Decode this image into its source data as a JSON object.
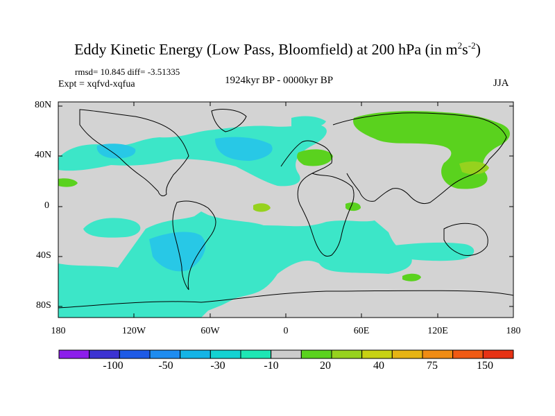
{
  "title": {
    "main": "Eddy Kinetic Energy (Low Pass, Bloomfield) at 200 hPa (in m",
    "sup1": "2",
    "s": "s",
    "sup2": "-2",
    "close": ")"
  },
  "stats": "rmsd= 10.845  diff= -3.51335",
  "expt": "Expt = xqfvd-xqfua",
  "period": "1924kyr BP - 0000kyr BP",
  "season": "JJA",
  "lat_labels": [
    "80N",
    "40N",
    "0",
    "40S",
    "80S"
  ],
  "lon_labels": [
    "180",
    "120W",
    "60W",
    "0",
    "60E",
    "120E",
    "180"
  ],
  "colorbar": {
    "colors": [
      "#8c1eeb",
      "#3c32d2",
      "#1e5ae6",
      "#1e8cf0",
      "#14b4e6",
      "#14d2d2",
      "#1ee6b4",
      "#cccccc",
      "#5ad21e",
      "#96d21e",
      "#c8d214",
      "#e6b414",
      "#f08c14",
      "#f05a14",
      "#e63214"
    ],
    "labels": [
      "-100",
      "-50",
      "-30",
      "-10",
      "20",
      "40",
      "75",
      "150"
    ]
  },
  "colors": {
    "land_ocean_bg": "#d3d3d3",
    "cyan_shade": "#3ce6c8",
    "blue_shade": "#28c8e6",
    "green_shade": "#5ad21e",
    "yellowgreen_shade": "#96d21e"
  }
}
